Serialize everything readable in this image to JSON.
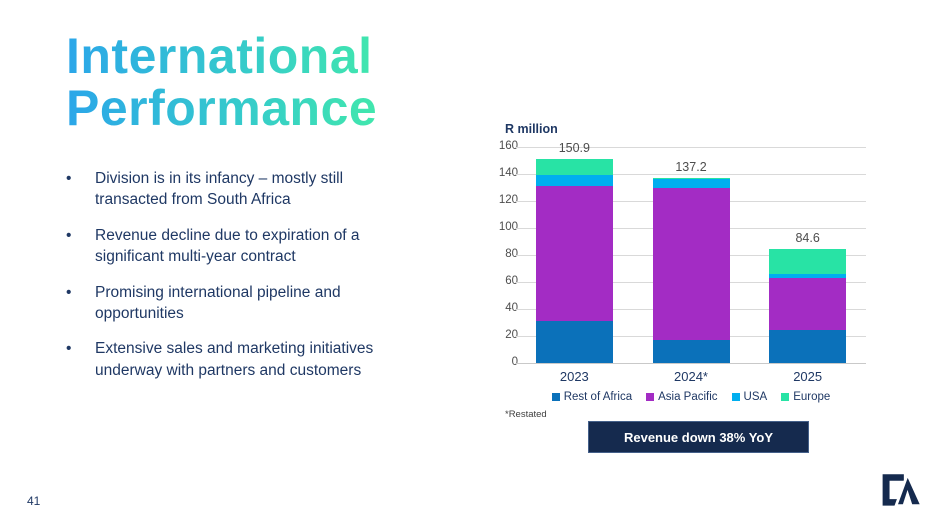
{
  "slide": {
    "title_line1": "International",
    "title_line2": "Performance",
    "bullets": [
      "Division is in its infancy – mostly still\ntransacted from South Africa",
      "Revenue decline due to expiration of a\nsignificant multi-year contract",
      "Promising international pipeline and\nopportunities",
      "Extensive sales and marketing initiatives\nunderway with partners and customers"
    ],
    "footnote": "*Restated",
    "callout": "Revenue down 38% YoY",
    "page_number": "41"
  },
  "chart_data": {
    "type": "bar",
    "stacked": true,
    "title": "R million",
    "categories": [
      "2023",
      "2024*",
      "2025"
    ],
    "series": [
      {
        "name": "Rest of Africa",
        "color": "#0b71ba",
        "values": [
          31.0,
          17.1,
          24.5
        ]
      },
      {
        "name": "Asia Pacific",
        "color": "#a32cc4",
        "values": [
          100.0,
          112.3,
          38.5
        ]
      },
      {
        "name": "USA",
        "color": "#00aeef",
        "values": [
          8.4,
          6.8,
          3.0
        ]
      },
      {
        "name": "Europe",
        "color": "#28e3a5",
        "values": [
          11.5,
          1.0,
          18.6
        ]
      }
    ],
    "totals": [
      150.9,
      137.2,
      84.6
    ],
    "ylim": [
      0,
      160
    ],
    "ytick_step": 20,
    "grid": true,
    "legend_position": "bottom",
    "gridline_color": "#d9d9d9"
  }
}
